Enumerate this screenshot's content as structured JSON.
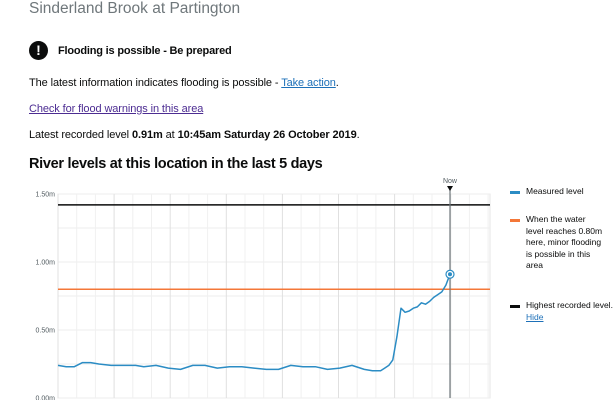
{
  "page": {
    "station_title": "Sinderland Brook at Partington",
    "alert": {
      "icon": "exclamation-icon",
      "text": "Flooding is possible - Be prepared"
    },
    "info": {
      "prefix": "The latest information indicates flooding is possible - ",
      "link": "Take action",
      "suffix": "."
    },
    "warnings_link": "Check for flood warnings in this area",
    "latest": {
      "prefix": "Latest recorded level ",
      "level": "0.91m",
      "middle": " at ",
      "datetime": "10:45am Saturday 26 October 2019",
      "suffix": "."
    },
    "chart_heading": "River levels at this location in the last 5 days"
  },
  "legend": {
    "measured": {
      "label": "Measured level",
      "color": "#2b8cc4"
    },
    "threshold": {
      "label": "When the water level reaches 0.80m here, minor flooding is possible in this area",
      "color": "#f47738"
    },
    "highest": {
      "label": "Highest recorded level.",
      "link": "Hide",
      "color": "#0b0c0c"
    }
  },
  "chart_data": {
    "type": "line",
    "title": "River levels at this location in the last 5 days",
    "xlabel": "",
    "ylabel": "",
    "ylim": [
      0,
      1.5
    ],
    "yticks": [
      "0.00m",
      "0.50m",
      "1.00m",
      "1.50m"
    ],
    "now_label": "Now",
    "grid": true,
    "legend_position": "right",
    "reference_lines": [
      {
        "name": "Minor flooding threshold",
        "value": 0.8,
        "color": "#f47738"
      },
      {
        "name": "Highest recorded level",
        "value": 1.42,
        "color": "#0b0c0c"
      }
    ],
    "series": [
      {
        "name": "Measured level",
        "color": "#2b8cc4",
        "x_fraction": [
          0.0,
          0.02,
          0.04,
          0.06,
          0.08,
          0.1,
          0.13,
          0.16,
          0.19,
          0.21,
          0.24,
          0.27,
          0.3,
          0.33,
          0.36,
          0.39,
          0.42,
          0.45,
          0.48,
          0.51,
          0.54,
          0.57,
          0.6,
          0.63,
          0.66,
          0.69,
          0.72,
          0.75,
          0.77,
          0.79,
          0.8,
          0.81,
          0.82,
          0.83,
          0.84,
          0.85,
          0.86,
          0.87,
          0.88,
          0.89,
          0.9,
          0.91,
          0.92,
          0.93,
          0.94,
          0.95,
          0.96
        ],
        "values": [
          0.24,
          0.23,
          0.23,
          0.26,
          0.26,
          0.25,
          0.24,
          0.24,
          0.24,
          0.23,
          0.24,
          0.22,
          0.21,
          0.24,
          0.24,
          0.22,
          0.23,
          0.23,
          0.22,
          0.21,
          0.21,
          0.24,
          0.23,
          0.23,
          0.21,
          0.22,
          0.24,
          0.21,
          0.2,
          0.2,
          0.22,
          0.24,
          0.28,
          0.45,
          0.66,
          0.63,
          0.64,
          0.66,
          0.67,
          0.7,
          0.69,
          0.71,
          0.74,
          0.76,
          0.78,
          0.83,
          0.91
        ]
      }
    ],
    "latest_point": {
      "value": 0.91,
      "label": "0.91m"
    }
  }
}
